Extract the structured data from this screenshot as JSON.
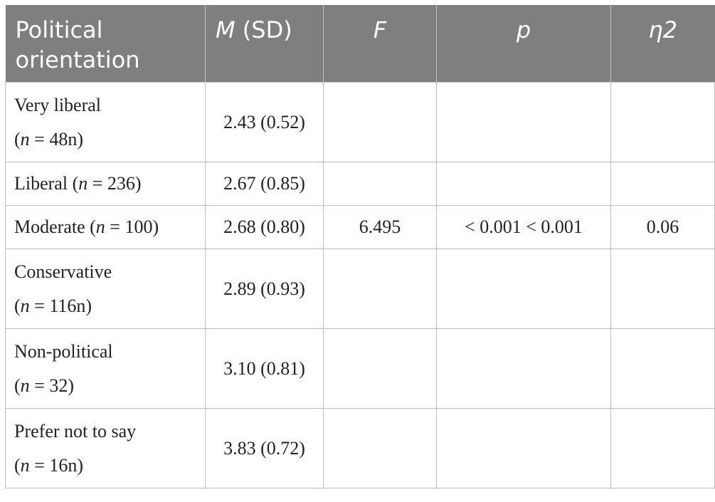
{
  "headers": {
    "col0": "Political orientation",
    "col1_italic": "M",
    "col1_rest": " (SD)",
    "col2": "F",
    "col3": "p",
    "col4": "η2"
  },
  "rows": [
    {
      "label_line1": "Very liberal",
      "n_prefix": "(",
      "n_var": "n",
      "n_suffix": " = 48n)",
      "msd": "2.43 (0.52)",
      "f": "",
      "p": "",
      "eta": ""
    },
    {
      "label_line1": "Liberal (",
      "n_var": "n",
      "n_suffix": " = 236)",
      "msd": "2.67 (0.85)",
      "f": "",
      "p": "",
      "eta": ""
    },
    {
      "label_line1": "Moderate (",
      "n_var": "n",
      "n_suffix": " = 100)",
      "msd": "2.68 (0.80)",
      "f": "6.495",
      "p": "< 0.001 < 0.001",
      "eta": "0.06"
    },
    {
      "label_line1": "Conservative",
      "n_prefix": "(",
      "n_var": "n",
      "n_suffix": " = 116n)",
      "msd": "2.89 (0.93)",
      "f": "",
      "p": "",
      "eta": ""
    },
    {
      "label_line1": "Non-political",
      "n_prefix": "(",
      "n_var": "n",
      "n_suffix": " = 32)",
      "msd": "3.10 (0.81)",
      "f": "",
      "p": "",
      "eta": ""
    },
    {
      "label_line1": "Prefer not to say",
      "n_prefix": "(",
      "n_var": "n",
      "n_suffix": " = 16n)",
      "msd": "3.83 (0.72)",
      "f": "",
      "p": "",
      "eta": ""
    }
  ]
}
